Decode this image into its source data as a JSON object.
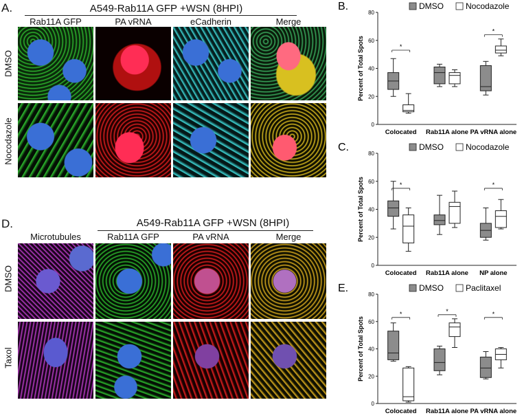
{
  "panel_a": {
    "letter": "A.",
    "header": "A549-Rab11A GFP +WSN (8HPI)",
    "columns": [
      "Rab11A GFP",
      "PA vRNA",
      "eCadherin",
      "Merge"
    ],
    "rows": [
      "DMSO",
      "Nocodazole"
    ]
  },
  "panel_d": {
    "letter": "D.",
    "header": "A549-Rab11A GFP +WSN (8HPI)",
    "columns": [
      "Microtubules",
      "Rab11A GFP",
      "PA vRNA",
      "Merge"
    ],
    "rows": [
      "DMSO",
      "Taxol"
    ]
  },
  "colors": {
    "dmso_box": "#8c8c8c",
    "drug_box": "#ffffff",
    "nuclei": "#3a6fd6",
    "rab11a": "#2fbf2f",
    "vrna": "#e62020",
    "ecad": "#3fd6d6",
    "microtubules": "#c23fd0"
  },
  "chart_data": [
    {
      "letter": "B.",
      "type": "box",
      "ylabel": "Percent of Total Spots",
      "ylim": [
        0,
        80
      ],
      "yticks": [
        0,
        20,
        40,
        60,
        80
      ],
      "legend": [
        "DMSO",
        "Nocodazole"
      ],
      "categories": [
        "Colocated",
        "Rab11A alone",
        "PA vRNA alone"
      ],
      "series": [
        {
          "name": "DMSO",
          "boxes": [
            {
              "min": 20,
              "q1": 25,
              "median": 31,
              "q3": 37,
              "max": 47
            },
            {
              "min": 27,
              "q1": 29,
              "median": 37,
              "q3": 41,
              "max": 43
            },
            {
              "min": 21,
              "q1": 24,
              "median": 27,
              "q3": 42,
              "max": 45
            }
          ]
        },
        {
          "name": "Nocodazole",
          "boxes": [
            {
              "min": 8,
              "q1": 9,
              "median": 10,
              "q3": 14,
              "max": 22
            },
            {
              "min": 27,
              "q1": 29,
              "median": 35,
              "q3": 37,
              "max": 39
            },
            {
              "min": 49,
              "q1": 51,
              "median": 53,
              "q3": 56,
              "max": 61
            }
          ]
        }
      ],
      "significance": [
        {
          "category": 0,
          "y": 53,
          "label": "*"
        },
        {
          "category": 2,
          "y": 64,
          "label": "*"
        }
      ]
    },
    {
      "letter": "C.",
      "type": "box",
      "ylabel": "Percent of Total Spots",
      "ylim": [
        0,
        80
      ],
      "yticks": [
        0,
        20,
        40,
        60,
        80
      ],
      "legend": [
        "DMSO",
        "Nocodazole"
      ],
      "categories": [
        "Colocated",
        "Rab11A alone",
        "NP alone"
      ],
      "series": [
        {
          "name": "DMSO",
          "boxes": [
            {
              "min": 26,
              "q1": 35,
              "median": 41,
              "q3": 46,
              "max": 60
            },
            {
              "min": 22,
              "q1": 29,
              "median": 32,
              "q3": 36,
              "max": 50
            },
            {
              "min": 18,
              "q1": 20,
              "median": 25,
              "q3": 30,
              "max": 41
            }
          ]
        },
        {
          "name": "Nocodazole",
          "boxes": [
            {
              "min": 10,
              "q1": 16,
              "median": 28,
              "q3": 36,
              "max": 41
            },
            {
              "min": 27,
              "q1": 30,
              "median": 42,
              "q3": 45,
              "max": 53
            },
            {
              "min": 26,
              "q1": 27,
              "median": 35,
              "q3": 39,
              "max": 47
            }
          ]
        }
      ],
      "significance": [
        {
          "category": 0,
          "y": 55,
          "label": "*"
        },
        {
          "category": 2,
          "y": 55,
          "label": "*"
        }
      ]
    },
    {
      "letter": "E.",
      "type": "box",
      "ylabel": "Percent of Total Spots",
      "ylim": [
        0,
        80
      ],
      "yticks": [
        0,
        20,
        40,
        60,
        80
      ],
      "legend": [
        "DMSO",
        "Paclitaxel"
      ],
      "categories": [
        "Colocated",
        "Rab11A alone",
        "PA vRNA alone"
      ],
      "series": [
        {
          "name": "DMSO",
          "boxes": [
            {
              "min": 31,
              "q1": 32,
              "median": 37,
              "q3": 53,
              "max": 59
            },
            {
              "min": 21,
              "q1": 24,
              "median": 30,
              "q3": 40,
              "max": 42
            },
            {
              "min": 18,
              "q1": 19,
              "median": 26,
              "q3": 34,
              "max": 38
            }
          ]
        },
        {
          "name": "Paclitaxel",
          "boxes": [
            {
              "min": 1,
              "q1": 2,
              "median": 5,
              "q3": 26,
              "max": 27
            },
            {
              "min": 41,
              "q1": 49,
              "median": 56,
              "q3": 59,
              "max": 62
            },
            {
              "min": 26,
              "q1": 32,
              "median": 36,
              "q3": 40,
              "max": 41
            }
          ]
        }
      ],
      "significance": [
        {
          "category": 0,
          "y": 63,
          "label": "*"
        },
        {
          "category": 1,
          "y": 65,
          "label": "*"
        },
        {
          "category": 2,
          "y": 63,
          "label": "*"
        }
      ]
    }
  ]
}
